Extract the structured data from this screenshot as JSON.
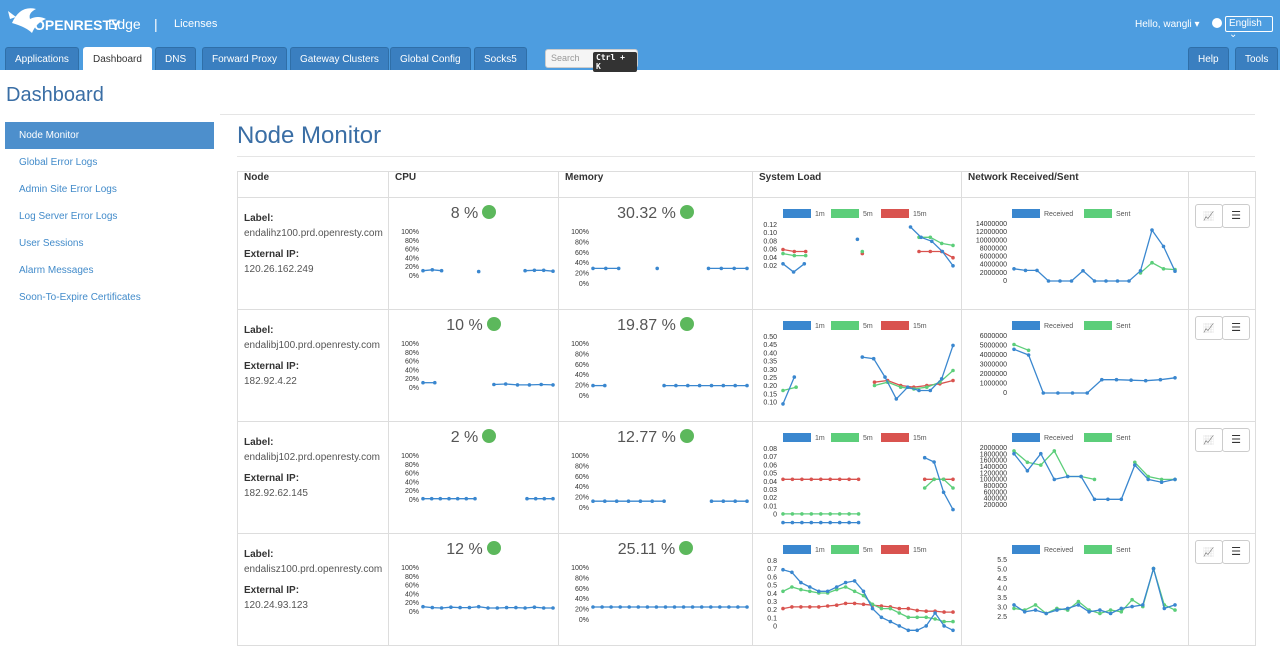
{
  "header": {
    "brand_logo_text": "OPENRESTY",
    "brand_product": "Edge",
    "separator": "|",
    "licenses_link": "Licenses",
    "user_greeting": "Hello, wangli",
    "language": "English",
    "tabs": [
      "Applications",
      "Dashboard",
      "DNS",
      "Forward Proxy",
      "Gateway Clusters",
      "Global Config",
      "Socks5"
    ],
    "right_tabs": [
      "Help",
      "Tools"
    ],
    "search_placeholder": "Search",
    "search_shortcut": "Ctrl + K"
  },
  "page_title": "Dashboard",
  "sidebar": {
    "items": [
      "Node Monitor",
      "Global Error Logs",
      "Admin Site Error Logs",
      "Log Server Error Logs",
      "User Sessions",
      "Alarm Messages",
      "Soon-To-Expire Certificates"
    ]
  },
  "section_title": "Node Monitor",
  "table": {
    "headers": [
      "Node",
      "CPU",
      "Memory",
      "System Load",
      "Network Received/Sent"
    ],
    "label_caption": "Label:",
    "ip_caption": "External IP:",
    "cpu_ticks": [
      "100%",
      "80%",
      "60%",
      "40%",
      "20%",
      "0%"
    ],
    "load_legend": [
      "1m",
      "5m",
      "15m"
    ],
    "net_legend": [
      "Received",
      "Sent"
    ],
    "colors": {
      "blue": "#3a87cf",
      "green": "#5cce7a",
      "red": "#d9534f",
      "status_ok": "#5cb85c"
    },
    "rows": [
      {
        "label": "endalihz100.prd.openresty.com",
        "ip": "120.26.162.249",
        "cpu_pct": "8 %",
        "mem_pct": "30.32 %",
        "load_ticks": [
          "0.12",
          "0.10",
          "0.08",
          "0.06",
          "0.04",
          "0.02"
        ],
        "load_range": [
          0.01,
          0.13
        ],
        "net_ticks": [
          "14000000",
          "12000000",
          "10000000",
          "8000000",
          "6000000",
          "4000000",
          "2000000",
          "0"
        ],
        "net_range": [
          0,
          14000000
        ],
        "cpu": [
          12,
          14,
          12,
          null,
          null,
          null,
          10,
          null,
          null,
          null,
          null,
          12,
          13,
          13,
          11
        ],
        "mem": [
          30,
          30,
          30,
          null,
          null,
          30,
          null,
          null,
          null,
          30,
          30,
          30,
          30
        ],
        "load1": [
          0.035,
          0.015,
          0.035,
          null,
          null,
          null,
          null,
          0.095,
          null,
          null,
          null,
          null,
          0.125,
          0.1,
          0.09,
          0.065,
          0.03
        ],
        "load5": [
          0.06,
          0.055,
          0.055,
          null,
          null,
          null,
          null,
          0.065,
          null,
          null,
          null,
          null,
          0.1,
          0.1,
          0.085,
          0.08
        ],
        "load15": [
          0.07,
          0.065,
          0.065,
          null,
          null,
          null,
          null,
          0.06,
          null,
          null,
          null,
          null,
          0.065,
          0.065,
          0.065,
          0.05
        ],
        "rx": [
          3000000,
          2600000,
          2600000,
          0,
          0,
          0,
          2500000,
          0,
          0,
          0,
          0,
          2500000,
          12500000,
          8500000,
          2400000
        ],
        "tx": [
          null,
          null,
          null,
          null,
          null,
          null,
          null,
          null,
          null,
          null,
          null,
          2000000,
          4500000,
          3000000,
          2800000
        ]
      },
      {
        "label": "endalibj100.prd.openresty.com",
        "ip": "182.92.4.22",
        "cpu_pct": "10 %",
        "mem_pct": "19.87 %",
        "load_ticks": [
          "0.50",
          "0.45",
          "0.40",
          "0.35",
          "0.30",
          "0.25",
          "0.20",
          "0.15",
          "0.10"
        ],
        "load_range": [
          0.08,
          0.52
        ],
        "net_ticks": [
          "6000000",
          "5000000",
          "4000000",
          "3000000",
          "2000000",
          "1000000",
          "0"
        ],
        "net_range": [
          0,
          6000000
        ],
        "cpu": [
          12,
          12,
          null,
          null,
          null,
          null,
          8,
          9,
          7,
          7,
          8,
          7
        ],
        "mem": [
          20,
          20,
          null,
          null,
          null,
          null,
          20,
          20,
          20,
          20,
          20,
          20,
          20,
          20
        ],
        "load1": [
          0.12,
          0.28,
          null,
          null,
          null,
          null,
          null,
          0.4,
          0.39,
          0.28,
          0.15,
          0.22,
          0.2,
          0.2,
          0.27,
          0.47
        ],
        "load5": [
          0.2,
          0.22,
          null,
          null,
          null,
          null,
          null,
          0.23,
          0.25,
          0.22,
          0.21,
          0.22,
          0.25,
          0.32
        ],
        "load15": [
          null,
          null,
          null,
          null,
          null,
          null,
          null,
          0.25,
          0.26,
          0.23,
          0.22,
          0.23,
          0.24,
          0.26
        ],
        "rx": [
          4600000,
          4000000,
          0,
          0,
          0,
          0,
          1400000,
          1400000,
          1350000,
          1300000,
          1400000,
          1600000
        ],
        "tx": [
          5100000,
          4500000
        ]
      },
      {
        "label": "endalibj102.prd.openresty.com",
        "ip": "182.92.62.145",
        "cpu_pct": "2 %",
        "mem_pct": "12.77 %",
        "load_ticks": [
          "0.08",
          "0.07",
          "0.06",
          "0.05",
          "0.04",
          "0.03",
          "0.02",
          "0.01",
          "0"
        ],
        "load_range": [
          0,
          0.085
        ],
        "net_ticks": [
          "2000000",
          "1800000",
          "1600000",
          "1400000",
          "1200000",
          "1000000",
          "800000",
          "600000",
          "400000",
          "200000"
        ],
        "net_range": [
          0,
          2000000
        ],
        "cpu": [
          3,
          3,
          3,
          3,
          3,
          3,
          3,
          null,
          null,
          null,
          null,
          null,
          3,
          3,
          3,
          3
        ],
        "mem": [
          13,
          13,
          13,
          13,
          13,
          13,
          13,
          null,
          null,
          null,
          13,
          13,
          13,
          13
        ],
        "load1": [
          0,
          0,
          0,
          0,
          0,
          0,
          0,
          0,
          0,
          null,
          null,
          null,
          null,
          null,
          null,
          0.075,
          0.07,
          0.035,
          0.015
        ],
        "load5": [
          0.01,
          0.01,
          0.01,
          0.01,
          0.01,
          0.01,
          0.01,
          0.01,
          0.01,
          null,
          null,
          null,
          null,
          null,
          null,
          0.04,
          0.05,
          0.05,
          0.04
        ],
        "load15": [
          0.05,
          0.05,
          0.05,
          0.05,
          0.05,
          0.05,
          0.05,
          0.05,
          0.05,
          null,
          null,
          null,
          null,
          null,
          null,
          0.05,
          0.05,
          0.05,
          0.05
        ],
        "rx": [
          1800000,
          1200000,
          1800000,
          900000,
          1000000,
          1000000,
          200000,
          200000,
          200000,
          1400000,
          900000,
          800000,
          900000
        ],
        "tx": [
          1900000,
          1500000,
          1400000,
          1900000,
          1000000,
          1000000,
          900000,
          null,
          null,
          1500000,
          1000000,
          900000,
          900000
        ]
      },
      {
        "label": "endalisz100.prd.openresty.com",
        "ip": "120.24.93.123",
        "cpu_pct": "12 %",
        "mem_pct": "25.11 %",
        "load_ticks": [
          "0.8",
          "0.7",
          "0.6",
          "0.5",
          "0.4",
          "0.3",
          "0.2",
          "0.1",
          "0"
        ],
        "load_range": [
          0,
          0.85
        ],
        "net_ticks": [
          "5.5",
          "5.0",
          "4.5",
          "4.0",
          "3.5",
          "3.0",
          "2.5"
        ],
        "net_range": [
          2.3,
          5.6
        ],
        "cpu": [
          12,
          10,
          9,
          11,
          10,
          10,
          12,
          9,
          9,
          10,
          10,
          9,
          11,
          9,
          9
        ],
        "mem": [
          25,
          25,
          25,
          25,
          25,
          25,
          25,
          25,
          25,
          25,
          25,
          25,
          25,
          25,
          25,
          25,
          25,
          25
        ],
        "load1": [
          0.75,
          0.72,
          0.6,
          0.55,
          0.5,
          0.5,
          0.55,
          0.6,
          0.62,
          0.5,
          0.3,
          0.2,
          0.15,
          0.1,
          0.05,
          0.05,
          0.1,
          0.25,
          0.1,
          0.05
        ],
        "load5": [
          0.5,
          0.55,
          0.52,
          0.5,
          0.48,
          0.48,
          0.52,
          0.55,
          0.5,
          0.45,
          0.35,
          0.3,
          0.3,
          0.25,
          0.2,
          0.2,
          0.2,
          0.18,
          0.15,
          0.15
        ],
        "load15": [
          0.3,
          0.32,
          0.32,
          0.32,
          0.32,
          0.33,
          0.34,
          0.36,
          0.36,
          0.35,
          0.34,
          0.33,
          0.32,
          0.3,
          0.3,
          0.28,
          0.27,
          0.27,
          0.26,
          0.26
        ],
        "rx": [
          3.0,
          2.6,
          2.7,
          2.5,
          2.7,
          2.8,
          3.0,
          2.6,
          2.7,
          2.5,
          2.8,
          2.9,
          3.0,
          5.1,
          2.8,
          3.0
        ],
        "tx": [
          2.8,
          2.7,
          3.0,
          2.5,
          2.8,
          2.7,
          3.2,
          2.7,
          2.5,
          2.7,
          2.6,
          3.3,
          2.9,
          5.1,
          3.0,
          2.7
        ]
      }
    ]
  }
}
